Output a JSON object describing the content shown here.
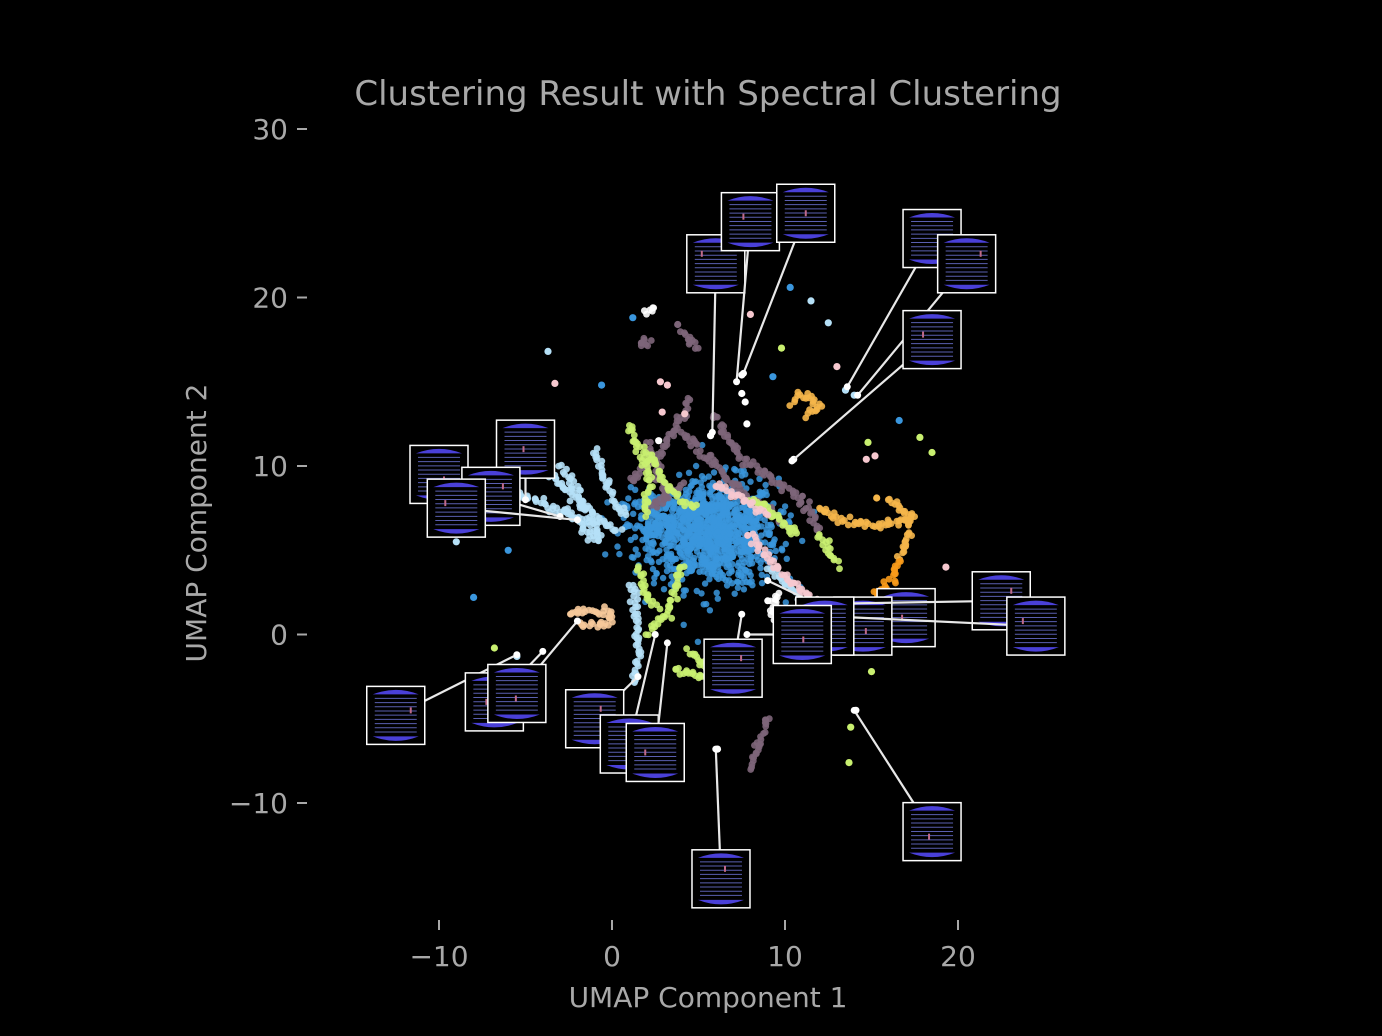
{
  "chart_data": {
    "type": "scatter",
    "title": "Clustering Result with Spectral Clustering",
    "xlabel": "UMAP Component 1",
    "ylabel": "UMAP Component 2",
    "xlim": [
      -15,
      27
    ],
    "ylim": [
      -17,
      31
    ],
    "xticks": [
      -10,
      0,
      10,
      20
    ],
    "yticks": [
      -10,
      0,
      10,
      20,
      30
    ],
    "xtick_labels": [
      "−10",
      "0",
      "10",
      "20"
    ],
    "ytick_labels": [
      "−10",
      "0",
      "10",
      "20",
      "30"
    ],
    "grid": false,
    "legend": "none",
    "background": "#000000",
    "colors": {
      "blue": "#3a96dd",
      "light_blue": "#b5e0f7",
      "mauve": "#7d6579",
      "lime": "#c9f070",
      "orange": "#f5b64a",
      "dark_orange": "#f89a1a",
      "peach": "#f6c99a",
      "pink": "#f6c8cf",
      "white": "#ffffff",
      "thumb_edge": "#ffffff"
    },
    "series": [
      {
        "color": "blue",
        "clusters": [
          {
            "cx": 6,
            "cy": 6,
            "sx": 1.8,
            "sy": 1.6,
            "n": 900
          },
          {
            "cx": 3,
            "cy": 6.5,
            "sx": 1.2,
            "sy": 1.0,
            "n": 200
          }
        ],
        "points": [
          [
            1.2,
            18.8
          ],
          [
            -0.6,
            14.8
          ],
          [
            9.3,
            15.3
          ],
          [
            10.3,
            20.6
          ],
          [
            16.6,
            12.7
          ],
          [
            -8.0,
            2.2
          ],
          [
            -6.0,
            5.0
          ]
        ]
      },
      {
        "color": "light_blue",
        "paths": [
          [
            [
              -5,
              11
            ],
            [
              -3,
              9
            ],
            [
              -2,
              8
            ],
            [
              -1,
              7
            ],
            [
              0.5,
              6
            ]
          ],
          [
            [
              -3,
              10
            ],
            [
              -2,
              8.5
            ],
            [
              -1.5,
              7
            ],
            [
              -0.5,
              5.5
            ]
          ],
          [
            [
              -7,
              9
            ],
            [
              -5,
              8.2
            ],
            [
              -3.5,
              7.5
            ],
            [
              -2,
              7
            ]
          ],
          [
            [
              -1,
              11
            ],
            [
              -0.5,
              9.5
            ],
            [
              0,
              8
            ],
            [
              1,
              7
            ]
          ],
          [
            [
              1.3,
              3
            ],
            [
              1.4,
              1
            ],
            [
              1.5,
              -1
            ],
            [
              1.3,
              -3
            ]
          ],
          [
            [
              9,
              4
            ],
            [
              10,
              3
            ],
            [
              11,
              2
            ],
            [
              12,
              1
            ]
          ],
          [
            [
              -2.5,
              7.5
            ],
            [
              -1.5,
              6
            ],
            [
              -0.7,
              5.4
            ]
          ]
        ],
        "points": [
          [
            -9.0,
            5.5
          ],
          [
            -5.5,
            -1.3
          ],
          [
            11.5,
            19.8
          ],
          [
            12.5,
            18.5
          ],
          [
            13.5,
            14.5
          ],
          [
            14,
            14.2
          ],
          [
            -3.7,
            16.8
          ]
        ]
      },
      {
        "color": "mauve",
        "paths": [
          [
            [
              4,
              12
            ],
            [
              5,
              11
            ],
            [
              6,
              10
            ],
            [
              7,
              9
            ],
            [
              8,
              8
            ],
            [
              9,
              7.5
            ],
            [
              10,
              6.5
            ]
          ],
          [
            [
              1,
              9
            ],
            [
              2,
              10
            ],
            [
              3,
              11
            ],
            [
              4,
              13
            ],
            [
              4.5,
              14
            ]
          ],
          [
            [
              3,
              8
            ],
            [
              2.5,
              10
            ],
            [
              2,
              11.5
            ]
          ],
          [
            [
              7,
              11
            ],
            [
              8,
              10
            ],
            [
              9.5,
              9
            ],
            [
              11,
              8
            ],
            [
              12,
              6
            ]
          ],
          [
            [
              6,
              13
            ],
            [
              6.5,
              12
            ],
            [
              7,
              11
            ]
          ],
          [
            [
              9,
              -5
            ],
            [
              8.5,
              -6.5
            ],
            [
              8,
              -8
            ]
          ],
          [
            [
              5,
              17
            ],
            [
              4.5,
              17.5
            ],
            [
              4,
              18
            ]
          ],
          [
            [
              2,
              17.5
            ],
            [
              1.8,
              17.2
            ]
          ],
          [
            [
              4,
              9
            ],
            [
              3,
              8
            ],
            [
              2,
              7.3
            ]
          ]
        ],
        "points": [
          [
            3.8,
            18.4
          ],
          [
            1.7,
            17.3
          ]
        ]
      },
      {
        "color": "lime",
        "paths": [
          [
            [
              1,
              12.5
            ],
            [
              1.5,
              11
            ],
            [
              2,
              10
            ],
            [
              2.2,
              8.5
            ],
            [
              2,
              7
            ]
          ],
          [
            [
              2,
              11
            ],
            [
              3,
              9
            ],
            [
              4,
              8
            ],
            [
              5,
              7.5
            ]
          ],
          [
            [
              8,
              8
            ],
            [
              9,
              7.5
            ],
            [
              10,
              6.5
            ],
            [
              11,
              6
            ]
          ],
          [
            [
              4,
              4
            ],
            [
              3.5,
              2
            ],
            [
              3,
              1
            ],
            [
              2,
              0
            ]
          ],
          [
            [
              4.5,
              -1
            ],
            [
              5,
              -1.5
            ],
            [
              6,
              -2
            ],
            [
              5,
              -2.5
            ],
            [
              3.5,
              -2
            ]
          ],
          [
            [
              1.5,
              4
            ],
            [
              2,
              2.5
            ],
            [
              2.5,
              1.5
            ]
          ],
          [
            [
              12,
              6
            ],
            [
              12.5,
              5
            ],
            [
              13,
              4
            ]
          ]
        ],
        "points": [
          [
            15,
            -2.2
          ],
          [
            13.8,
            -5.5
          ],
          [
            13.7,
            -7.6
          ],
          [
            -6.8,
            -0.8
          ],
          [
            -4.8,
            -3.8
          ],
          [
            14.8,
            11.4
          ],
          [
            18.5,
            10.8
          ],
          [
            17.8,
            11.7
          ],
          [
            9.8,
            17
          ]
        ]
      },
      {
        "color": "orange",
        "paths": [
          [
            [
              12,
              7.5
            ],
            [
              13,
              7
            ],
            [
              14.5,
              6.5
            ],
            [
              16,
              6.5
            ],
            [
              17,
              6.8
            ],
            [
              17.5,
              7.2
            ]
          ],
          [
            [
              16,
              8
            ],
            [
              16.8,
              7.4
            ],
            [
              17.2,
              6.6
            ],
            [
              17.0,
              5.5
            ],
            [
              16.5,
              4.5
            ]
          ],
          [
            [
              10.5,
              13.8
            ],
            [
              11,
              14.3
            ],
            [
              12,
              13.5
            ],
            [
              11.2,
              13.0
            ]
          ]
        ],
        "points": [
          [
            15.3,
            8.1
          ]
        ]
      },
      {
        "color": "dark_orange",
        "paths": [
          [
            [
              16.5,
              4.5
            ],
            [
              16.2,
              3.3
            ],
            [
              15.8,
              2.6
            ],
            [
              15,
              2.3
            ]
          ]
        ],
        "points": []
      },
      {
        "color": "peach",
        "paths": [
          [
            [
              -2.5,
              1.3
            ],
            [
              -1,
              1.4
            ],
            [
              0,
              1.2
            ],
            [
              -0.2,
              0.7
            ],
            [
              -2,
              0.5
            ]
          ]
        ],
        "points": []
      },
      {
        "color": "pink",
        "paths": [
          [
            [
              8,
              6
            ],
            [
              9,
              4.5
            ],
            [
              10,
              3.5
            ],
            [
              11,
              2.5
            ],
            [
              12.5,
              1.5
            ]
          ],
          [
            [
              6,
              9
            ],
            [
              7.5,
              8
            ],
            [
              9,
              7
            ]
          ]
        ],
        "points": [
          [
            -3.3,
            14.9
          ],
          [
            2.8,
            15
          ],
          [
            3.2,
            14.8
          ],
          [
            8,
            19
          ],
          [
            14.7,
            10.4
          ],
          [
            15.2,
            10.6
          ],
          [
            13,
            15.9
          ],
          [
            19.3,
            4
          ],
          [
            17.5,
            1.4
          ],
          [
            2.9,
            13.2
          ],
          [
            4.2,
            13.1
          ]
        ]
      },
      {
        "color": "white",
        "paths": [
          [
            [
              9.5,
              2.5
            ],
            [
              9.3,
              1.5
            ],
            [
              9.5,
              1
            ],
            [
              10,
              0.8
            ]
          ],
          [
            [
              2,
              19
            ],
            [
              2.5,
              19.3
            ]
          ]
        ],
        "points": [
          [
            6.1,
            -6.8
          ],
          [
            14.1,
            -4.5
          ],
          [
            7.7,
            13.8
          ],
          [
            7.8,
            12.5
          ],
          [
            5.7,
            11.8
          ],
          [
            10.5,
            10.4
          ],
          [
            7.5,
            14.3
          ],
          [
            2.7,
            11.5
          ],
          [
            7.5,
            15.4
          ]
        ]
      }
    ],
    "thumbnails": [
      {
        "target": [
          5.8,
          12.0
        ],
        "center": [
          6.0,
          22.0
        ]
      },
      {
        "target": [
          7.2,
          15.0
        ],
        "center": [
          8.0,
          24.5
        ]
      },
      {
        "target": [
          7.6,
          15.5
        ],
        "center": [
          11.2,
          25.0
        ]
      },
      {
        "target": [
          13.6,
          14.7
        ],
        "center": [
          18.5,
          23.5
        ]
      },
      {
        "target": [
          14.2,
          14.2
        ],
        "center": [
          20.5,
          22.0
        ]
      },
      {
        "target": [
          10.4,
          10.3
        ],
        "center": [
          18.5,
          17.5
        ]
      },
      {
        "target": [
          -5.0,
          8.0
        ],
        "center": [
          -5.0,
          11.0
        ]
      },
      {
        "target": [
          -6.0,
          8.5
        ],
        "center": [
          -10.0,
          9.5
        ]
      },
      {
        "target": [
          -3.0,
          7.0
        ],
        "center": [
          -7.0,
          8.2
        ]
      },
      {
        "target": [
          -2.0,
          6.8
        ],
        "center": [
          -9.0,
          7.5
        ]
      },
      {
        "target": [
          13.0,
          1.5
        ],
        "center": [
          17.0,
          1.0
        ]
      },
      {
        "target": [
          9.0,
          3.2
        ],
        "center": [
          14.5,
          0.5
        ]
      },
      {
        "target": [
          11.3,
          1.8
        ],
        "center": [
          22.5,
          2.0
        ]
      },
      {
        "target": [
          12.2,
          1.1
        ],
        "center": [
          24.5,
          0.5
        ]
      },
      {
        "target": [
          9.0,
          2.0
        ],
        "center": [
          12.3,
          0.5
        ]
      },
      {
        "target": [
          7.8,
          0.0
        ],
        "center": [
          11.0,
          0.0
        ]
      },
      {
        "target": [
          7.5,
          1.2
        ],
        "center": [
          7.0,
          -2.0
        ]
      },
      {
        "target": [
          -5.5,
          -1.2
        ],
        "center": [
          -12.5,
          -4.8
        ]
      },
      {
        "target": [
          -4.0,
          -1.0
        ],
        "center": [
          -6.8,
          -4.0
        ]
      },
      {
        "target": [
          -2.0,
          0.8
        ],
        "center": [
          -5.5,
          -3.5
        ]
      },
      {
        "target": [
          1.5,
          -2.5
        ],
        "center": [
          -1.0,
          -5.0
        ]
      },
      {
        "target": [
          2.5,
          0.0
        ],
        "center": [
          1.0,
          -6.5
        ]
      },
      {
        "target": [
          3.2,
          -0.5
        ],
        "center": [
          2.5,
          -7.0
        ]
      },
      {
        "target": [
          14.0,
          -4.5
        ],
        "center": [
          18.5,
          -11.7
        ]
      },
      {
        "target": [
          6.0,
          -6.8
        ],
        "center": [
          6.3,
          -14.5
        ]
      }
    ]
  }
}
